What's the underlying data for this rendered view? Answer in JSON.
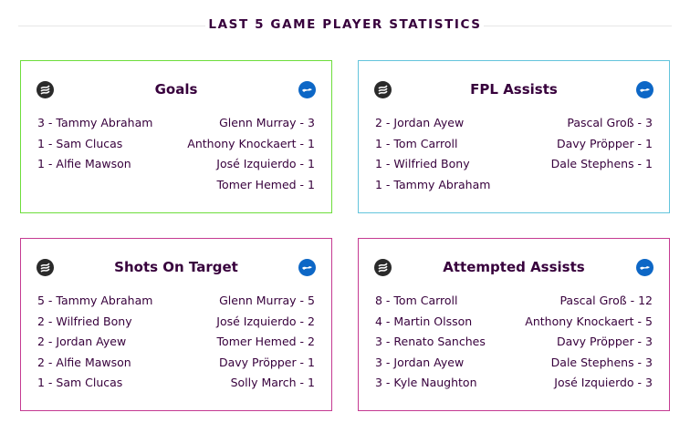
{
  "header": {
    "title": "LAST 5 GAME PLAYER STATISTICS"
  },
  "teams": {
    "home": "swansea-crest-icon",
    "away": "brighton-crest-icon"
  },
  "colors": {
    "goals": "#6ddd3b",
    "fpl_assists": "#63c4dc",
    "shots": "#c53a92",
    "attempted": "#c53a92",
    "text": "#37003c"
  },
  "cards": [
    {
      "title": "Goals",
      "home": [
        "3 - Tammy Abraham",
        "1 - Sam Clucas",
        "1 - Alfie Mawson"
      ],
      "away": [
        "Glenn Murray - 3",
        "Anthony Knockaert - 1",
        "José Izquierdo - 1",
        "Tomer Hemed - 1"
      ]
    },
    {
      "title": "FPL Assists",
      "home": [
        "2 - Jordan Ayew",
        "1 - Tom Carroll",
        "1 - Wilfried Bony",
        "1 - Tammy Abraham"
      ],
      "away": [
        "Pascal Groß - 3",
        "Davy Pröpper - 1",
        "Dale Stephens - 1"
      ]
    },
    {
      "title": "Shots On Target",
      "home": [
        "5 - Tammy Abraham",
        "2 - Wilfried Bony",
        "2 - Jordan Ayew",
        "2 - Alfie Mawson",
        "1 - Sam Clucas"
      ],
      "away": [
        "Glenn Murray - 5",
        "José Izquierdo - 2",
        "Tomer Hemed - 2",
        "Davy Pröpper - 1",
        "Solly March - 1"
      ]
    },
    {
      "title": "Attempted Assists",
      "home": [
        "8 - Tom Carroll",
        "4 - Martin Olsson",
        "3 - Renato Sanches",
        "3 - Jordan Ayew",
        "3 - Kyle Naughton"
      ],
      "away": [
        "Pascal Groß - 12",
        "Anthony Knockaert - 5",
        "Davy Pröpper - 3",
        "Dale Stephens - 3",
        "José Izquierdo - 3"
      ]
    }
  ]
}
